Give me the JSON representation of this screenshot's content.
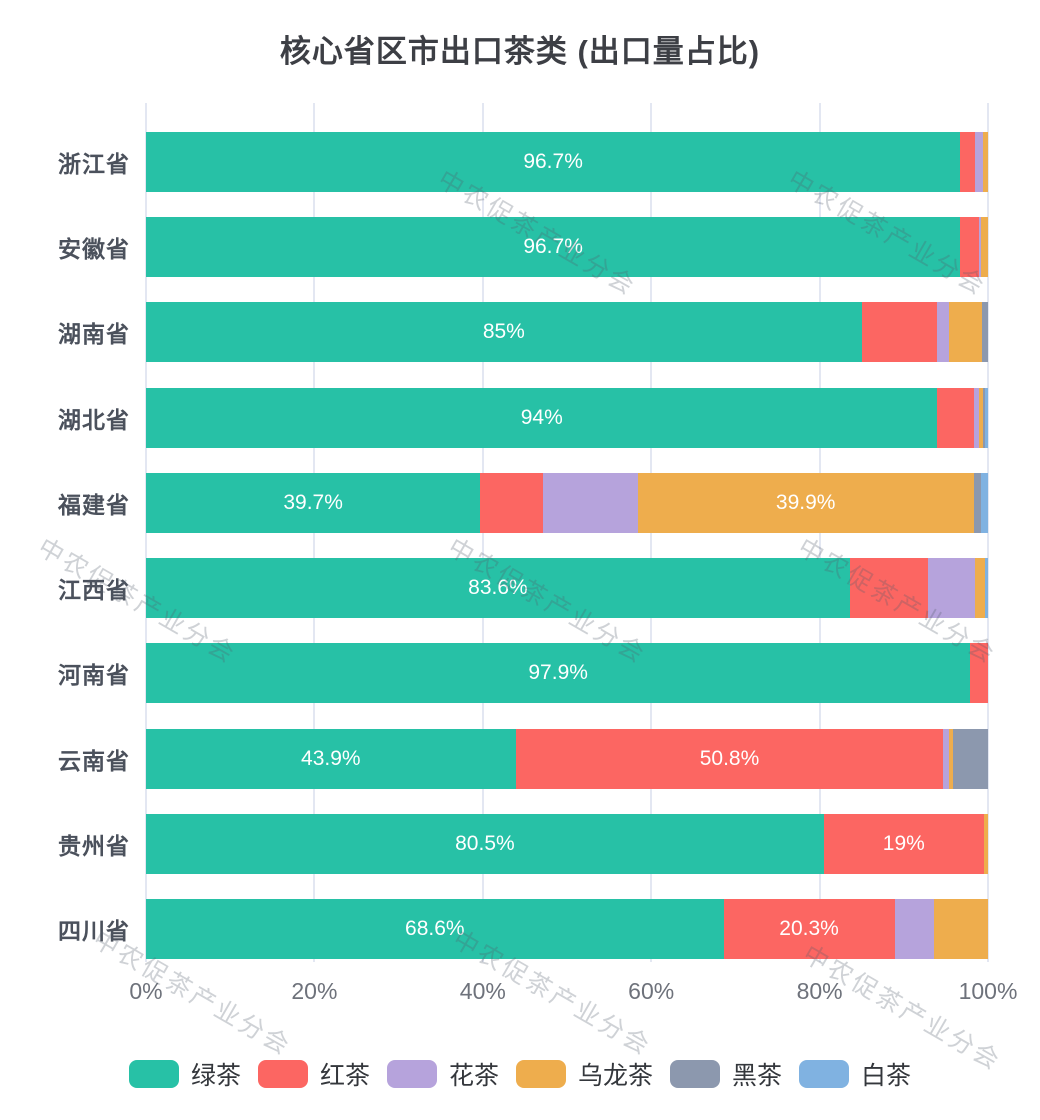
{
  "title": "核心省区市出口茶类 (出口量占比)",
  "watermark_text": "中农促茶产业分会",
  "x_axis": {
    "ticks": [
      "0%",
      "20%",
      "40%",
      "60%",
      "80%",
      "100%"
    ]
  },
  "legend": [
    {
      "id": "green-tea",
      "label": "绿茶",
      "color": "#27c1a6"
    },
    {
      "id": "red-tea",
      "label": "红茶",
      "color": "#fc6662"
    },
    {
      "id": "flower-tea",
      "label": "花茶",
      "color": "#b6a3dc"
    },
    {
      "id": "oolong-tea",
      "label": "乌龙茶",
      "color": "#eead4d"
    },
    {
      "id": "dark-tea",
      "label": "黑茶",
      "color": "#8c98ae"
    },
    {
      "id": "white-tea",
      "label": "白茶",
      "color": "#80b2e1"
    }
  ],
  "chart_data": {
    "type": "bar",
    "orientation": "horizontal",
    "stacked": true,
    "unit": "percent",
    "xlim": [
      0,
      100
    ],
    "grid": true,
    "legend_position": "bottom",
    "title": "核心省区市出口茶类 (出口量占比)",
    "categories": [
      "浙江省",
      "安徽省",
      "湖南省",
      "湖北省",
      "福建省",
      "江西省",
      "河南省",
      "云南省",
      "贵州省",
      "四川省"
    ],
    "series": [
      {
        "id": "green-tea",
        "name": "绿茶",
        "color": "#27c1a6",
        "values": [
          96.7,
          96.7,
          85,
          94,
          39.7,
          83.6,
          97.9,
          43.9,
          80.5,
          68.6
        ],
        "labels": [
          "96.7%",
          "96.7%",
          "85%",
          "94%",
          "39.7%",
          "83.6%",
          "97.9%",
          "43.9%",
          "80.5%",
          "68.6%"
        ]
      },
      {
        "id": "red-tea",
        "name": "红茶",
        "color": "#fc6662",
        "values": [
          1.7,
          2.2,
          8.9,
          4.3,
          7.4,
          9.3,
          2.1,
          50.8,
          19,
          20.3
        ],
        "labels": [
          "",
          "",
          "",
          "",
          "",
          "",
          "",
          "50.8%",
          "19%",
          "20.3%"
        ]
      },
      {
        "id": "flower-tea",
        "name": "花茶",
        "color": "#b6a3dc",
        "values": [
          1.0,
          0.3,
          1.5,
          0.6,
          11.3,
          5.6,
          0,
          0.7,
          0,
          4.7
        ],
        "labels": [
          "",
          "",
          "",
          "",
          "",
          "",
          "",
          "",
          "",
          ""
        ]
      },
      {
        "id": "oolong-tea",
        "name": "乌龙茶",
        "color": "#eead4d",
        "values": [
          0.6,
          0.8,
          3.9,
          0.5,
          39.9,
          1.2,
          0,
          0.5,
          0.5,
          6.4
        ],
        "labels": [
          "",
          "",
          "",
          "",
          "39.9%",
          "",
          "",
          "",
          "",
          ""
        ]
      },
      {
        "id": "dark-tea",
        "name": "黑茶",
        "color": "#8c98ae",
        "values": [
          0,
          0,
          0.7,
          0.3,
          0.9,
          0,
          0,
          4.1,
          0,
          0
        ],
        "labels": [
          "",
          "",
          "",
          "",
          "",
          "",
          "",
          "",
          "",
          ""
        ]
      },
      {
        "id": "white-tea",
        "name": "白茶",
        "color": "#80b2e1",
        "values": [
          0,
          0,
          0,
          0.3,
          0.8,
          0.3,
          0,
          0,
          0,
          0
        ],
        "labels": [
          "",
          "",
          "",
          "",
          "",
          "",
          "",
          "",
          "",
          ""
        ]
      }
    ]
  }
}
